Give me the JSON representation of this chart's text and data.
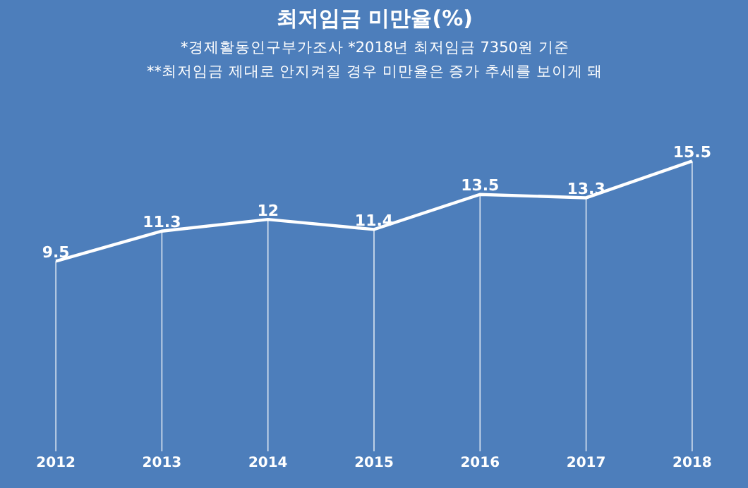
{
  "chart_data": {
    "type": "line",
    "title": "최저임금 미만율(%)",
    "subtitle": "*경제활동인구부가조사 *2018년 최저임금 7350원 기준\n**최저임금 제대로 안지켜질 경우 미만율은 증가 추세를 보이게 돼",
    "categories": [
      "2012",
      "2013",
      "2014",
      "2015",
      "2016",
      "2017",
      "2018"
    ],
    "series": [
      {
        "color": "#ffffff",
        "values": [
          9.5,
          11.3,
          12,
          11.4,
          13.5,
          13.3,
          15.5
        ]
      }
    ],
    "data_labels": true,
    "grid": "x",
    "marker": "none",
    "line_style": "solid"
  }
}
